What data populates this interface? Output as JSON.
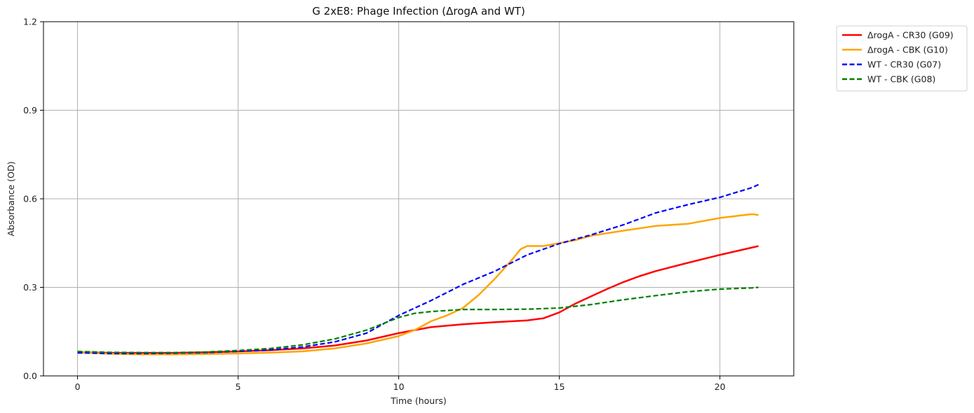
{
  "chart_data": {
    "type": "line",
    "title": "G 2xE8: Phage Infection (ΔrogA and WT)",
    "xlabel": "Time (hours)",
    "ylabel": "Absorbance (OD)",
    "xlim": [
      -1.06,
      22.3
    ],
    "ylim": [
      0.0,
      1.2
    ],
    "xticks": [
      0,
      5,
      10,
      15,
      20
    ],
    "yticks": [
      0.0,
      0.3,
      0.6,
      0.9,
      1.2
    ],
    "xtick_labels": [
      "0",
      "5",
      "10",
      "15",
      "20"
    ],
    "ytick_labels": [
      "0.0",
      "0.3",
      "0.6",
      "0.9",
      "1.2"
    ],
    "grid": true,
    "legend_position": "outside-top-right",
    "series": [
      {
        "name": "ΔrogA - CR30 (G09)",
        "color": "#ff0000",
        "style": "solid",
        "x": [
          0,
          1,
          2,
          3,
          4,
          5,
          6,
          7,
          8,
          9,
          10,
          11,
          12,
          13,
          14,
          14.5,
          15,
          15.5,
          16,
          16.5,
          17,
          17.5,
          18,
          19,
          20,
          21,
          21.2
        ],
        "y": [
          0.08,
          0.078,
          0.078,
          0.078,
          0.08,
          0.083,
          0.087,
          0.093,
          0.103,
          0.12,
          0.145,
          0.165,
          0.175,
          0.182,
          0.188,
          0.195,
          0.215,
          0.245,
          0.27,
          0.295,
          0.318,
          0.338,
          0.355,
          0.383,
          0.41,
          0.435,
          0.44
        ]
      },
      {
        "name": "ΔrogA - CBK (G10)",
        "color": "#ffa500",
        "style": "solid",
        "x": [
          0,
          1,
          2,
          3,
          4,
          5,
          6,
          7,
          8,
          9,
          10,
          10.5,
          11,
          11.5,
          12,
          12.5,
          13,
          13.5,
          13.8,
          14,
          14.5,
          15,
          15.5,
          16,
          17,
          18,
          19,
          20,
          21,
          21.2
        ],
        "y": [
          0.08,
          0.075,
          0.073,
          0.073,
          0.074,
          0.076,
          0.079,
          0.083,
          0.093,
          0.11,
          0.135,
          0.155,
          0.185,
          0.205,
          0.23,
          0.275,
          0.33,
          0.39,
          0.43,
          0.44,
          0.44,
          0.45,
          0.46,
          0.475,
          0.492,
          0.508,
          0.515,
          0.535,
          0.548,
          0.545
        ]
      },
      {
        "name": "WT - CR30 (G07)",
        "color": "#0000ff",
        "style": "dashed",
        "x": [
          0,
          1,
          2,
          3,
          4,
          5,
          6,
          7,
          8,
          9,
          10,
          11,
          12,
          13,
          14,
          15,
          16,
          17,
          18,
          19,
          20,
          21,
          21.2
        ],
        "y": [
          0.078,
          0.076,
          0.076,
          0.077,
          0.079,
          0.083,
          0.088,
          0.098,
          0.115,
          0.145,
          0.205,
          0.255,
          0.31,
          0.355,
          0.41,
          0.448,
          0.478,
          0.512,
          0.552,
          0.58,
          0.605,
          0.638,
          0.648
        ]
      },
      {
        "name": "WT - CBK (G08)",
        "color": "#008000",
        "style": "dashed",
        "x": [
          0,
          1,
          2,
          3,
          4,
          5,
          6,
          7,
          8,
          9,
          10,
          10.5,
          11,
          12,
          13,
          14,
          15,
          16,
          17,
          18,
          19,
          20,
          21,
          21.2
        ],
        "y": [
          0.083,
          0.08,
          0.079,
          0.079,
          0.081,
          0.086,
          0.093,
          0.105,
          0.125,
          0.155,
          0.198,
          0.212,
          0.218,
          0.225,
          0.225,
          0.226,
          0.23,
          0.242,
          0.258,
          0.272,
          0.285,
          0.294,
          0.298,
          0.3
        ]
      }
    ]
  }
}
